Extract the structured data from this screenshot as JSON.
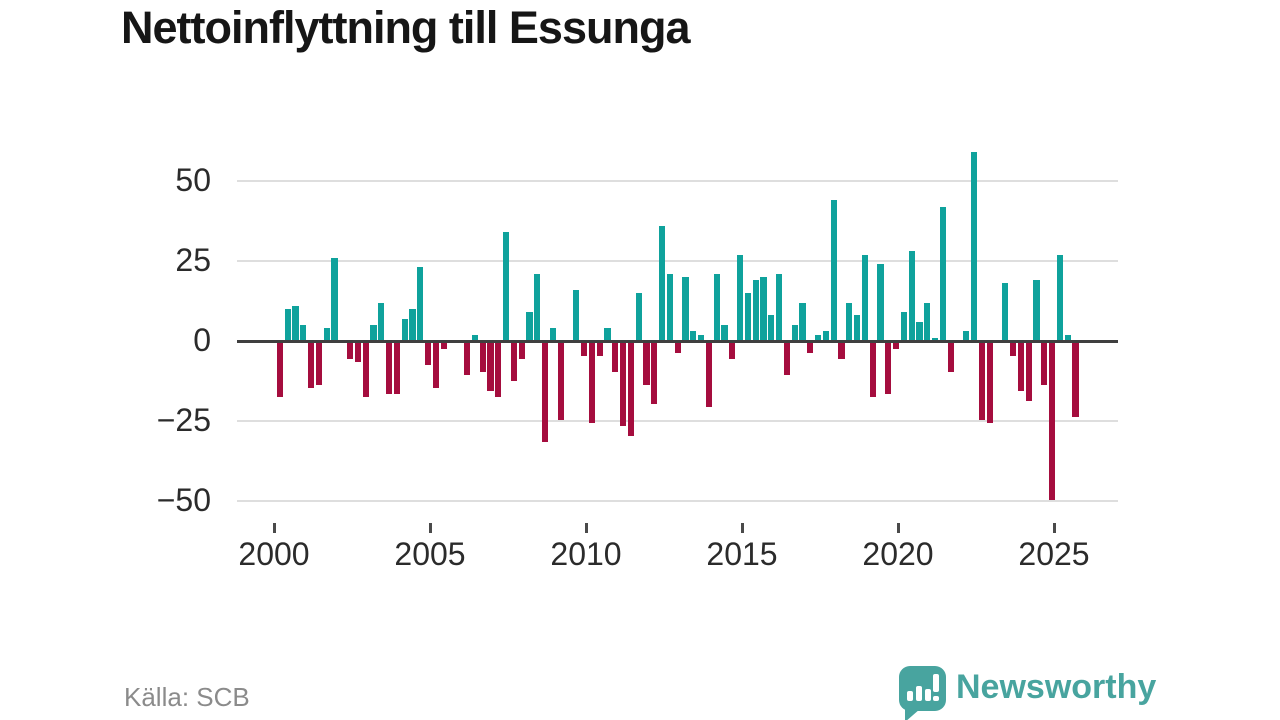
{
  "title": "Nettoinflyttning till Essunga",
  "source": "Källa: SCB",
  "logo": {
    "text": "Newsworthy",
    "icon": "speech-bubble-bar-chart-exclamation",
    "color": "#48a49f"
  },
  "colors": {
    "positive_bar": "#0fa29c",
    "negative_bar": "#a50d3e",
    "gridline": "#dedede",
    "zero_line": "#3f3f3f",
    "axis_text": "#2b2b2b",
    "title_text": "#161616",
    "source_text": "#8b8b8b"
  },
  "chart_data": {
    "type": "bar",
    "title": "Nettoinflyttning till Essunga",
    "xlabel": "",
    "ylabel": "",
    "unit": "persons per quarter (net migration)",
    "ylim": [
      -56,
      63
    ],
    "grid": "horizontal-only",
    "legend": "none",
    "y_ticks": [
      50,
      25,
      0,
      -25,
      -50
    ],
    "y_tick_labels": [
      "50",
      "25",
      "0",
      "−25",
      "−50"
    ],
    "x_tick_years": [
      2000,
      2005,
      2010,
      2015,
      2020,
      2025
    ],
    "x_tick_labels": [
      "2000",
      "2005",
      "2010",
      "2015",
      "2020",
      "2025"
    ],
    "start": "2000 Q1",
    "frequency": "quarterly",
    "series": [
      {
        "year": 2000,
        "values": [
          -17,
          10,
          11,
          5
        ]
      },
      {
        "year": 2001,
        "values": [
          -14,
          -13,
          4,
          26
        ]
      },
      {
        "year": 2002,
        "values": [
          0,
          -5,
          -6,
          -17
        ]
      },
      {
        "year": 2003,
        "values": [
          5,
          12,
          -16,
          -16
        ]
      },
      {
        "year": 2004,
        "values": [
          7,
          10,
          23,
          -7
        ]
      },
      {
        "year": 2005,
        "values": [
          -14,
          -2,
          0,
          0
        ]
      },
      {
        "year": 2006,
        "values": [
          -10,
          2,
          -9,
          -15
        ]
      },
      {
        "year": 2007,
        "values": [
          -17,
          34,
          -12,
          -5
        ]
      },
      {
        "year": 2008,
        "values": [
          9,
          21,
          -31,
          4
        ]
      },
      {
        "year": 2009,
        "values": [
          -24,
          0,
          16,
          -4
        ]
      },
      {
        "year": 2010,
        "values": [
          -25,
          -4,
          4,
          -9
        ]
      },
      {
        "year": 2011,
        "values": [
          -26,
          -29,
          15,
          -13
        ]
      },
      {
        "year": 2012,
        "values": [
          -19,
          36,
          21,
          -3
        ]
      },
      {
        "year": 2013,
        "values": [
          20,
          3,
          2,
          -20
        ]
      },
      {
        "year": 2014,
        "values": [
          21,
          5,
          -5,
          27
        ]
      },
      {
        "year": 2015,
        "values": [
          15,
          19,
          20,
          8
        ]
      },
      {
        "year": 2016,
        "values": [
          21,
          -10,
          5,
          12
        ]
      },
      {
        "year": 2017,
        "values": [
          -3,
          2,
          3,
          44
        ]
      },
      {
        "year": 2018,
        "values": [
          -5,
          12,
          8,
          27
        ]
      },
      {
        "year": 2019,
        "values": [
          -17,
          24,
          -16,
          -2
        ]
      },
      {
        "year": 2020,
        "values": [
          9,
          28,
          6,
          12
        ]
      },
      {
        "year": 2021,
        "values": [
          1,
          42,
          -9,
          0
        ]
      },
      {
        "year": 2022,
        "values": [
          3,
          59,
          -24,
          -25
        ]
      },
      {
        "year": 2023,
        "values": [
          0,
          18,
          -4,
          -15
        ]
      },
      {
        "year": 2024,
        "values": [
          -18,
          19,
          -13,
          -49
        ]
      },
      {
        "year": 2025,
        "values": [
          27,
          2,
          -23
        ]
      }
    ]
  }
}
